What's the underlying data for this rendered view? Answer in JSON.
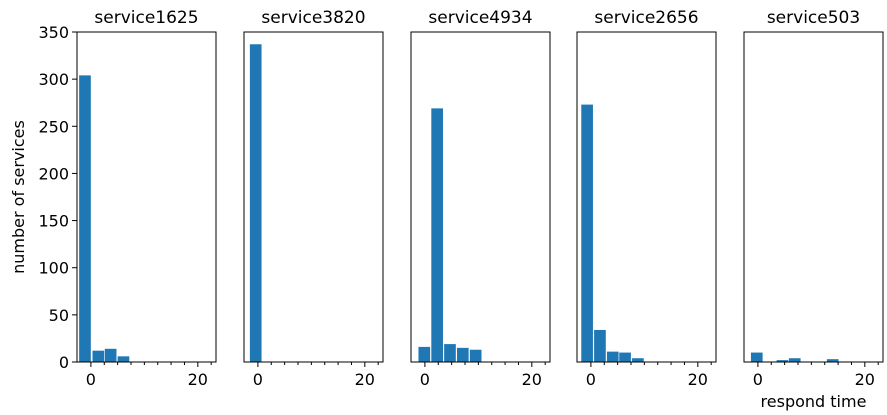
{
  "chart_data": [
    {
      "type": "bar",
      "title": "service1625",
      "ylabel": "number of services",
      "xlabel": "",
      "xlim": [
        -2.6,
        23.4
      ],
      "ylim": [
        0,
        350
      ],
      "x_ticks": [
        0,
        20
      ],
      "y_ticks": [
        0,
        50,
        100,
        150,
        200,
        250,
        300,
        350
      ],
      "bin_width": 2.33,
      "bins": [
        {
          "x": -2.2,
          "value": 304
        },
        {
          "x": 0.3,
          "value": 12
        },
        {
          "x": 2.6,
          "value": 14
        },
        {
          "x": 5.0,
          "value": 6
        }
      ],
      "color": "#1f77b4"
    },
    {
      "type": "bar",
      "title": "service3820",
      "ylabel": "",
      "xlabel": "",
      "xlim": [
        -2.6,
        23.4
      ],
      "ylim": [
        0,
        350
      ],
      "x_ticks": [
        0,
        20
      ],
      "y_ticks": [],
      "bin_width": 2.33,
      "bins": [
        {
          "x": -1.5,
          "value": 337
        }
      ],
      "color": "#1f77b4"
    },
    {
      "type": "bar",
      "title": "service4934",
      "ylabel": "",
      "xlabel": "",
      "xlim": [
        -2.6,
        23.4
      ],
      "ylim": [
        0,
        350
      ],
      "x_ticks": [
        0,
        20
      ],
      "y_ticks": [],
      "bin_width": 2.33,
      "bins": [
        {
          "x": -1.2,
          "value": 16
        },
        {
          "x": 1.2,
          "value": 269
        },
        {
          "x": 3.6,
          "value": 19
        },
        {
          "x": 6.0,
          "value": 15
        },
        {
          "x": 8.4,
          "value": 13
        }
      ],
      "color": "#1f77b4"
    },
    {
      "type": "bar",
      "title": "service2656",
      "ylabel": "",
      "xlabel": "",
      "xlim": [
        -2.6,
        23.4
      ],
      "ylim": [
        0,
        350
      ],
      "x_ticks": [
        0,
        20
      ],
      "y_ticks": [],
      "bin_width": 2.33,
      "bins": [
        {
          "x": -1.8,
          "value": 273
        },
        {
          "x": 0.6,
          "value": 34
        },
        {
          "x": 3.0,
          "value": 11
        },
        {
          "x": 5.3,
          "value": 10
        },
        {
          "x": 7.7,
          "value": 4
        }
      ],
      "color": "#1f77b4"
    },
    {
      "type": "bar",
      "title": "service503",
      "ylabel": "",
      "xlabel": "respond time",
      "xlim": [
        -2.6,
        23.4
      ],
      "ylim": [
        0,
        350
      ],
      "x_ticks": [
        0,
        20
      ],
      "y_ticks": [],
      "bin_width": 2.33,
      "bins": [
        {
          "x": -1.3,
          "value": 10
        },
        {
          "x": 3.5,
          "value": 2
        },
        {
          "x": 5.8,
          "value": 4
        },
        {
          "x": 12.9,
          "value": 3
        }
      ],
      "color": "#1f77b4"
    }
  ]
}
